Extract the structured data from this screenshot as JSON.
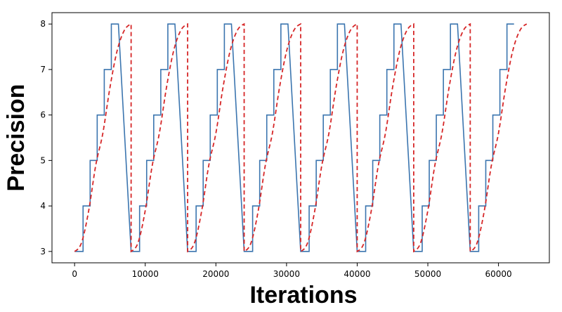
{
  "chart_data": {
    "type": "line",
    "xlabel": "Iterations",
    "ylabel": "Precision",
    "xlim": [
      -3200,
      67200
    ],
    "ylim": [
      2.75,
      8.25
    ],
    "xticks": [
      0,
      10000,
      20000,
      30000,
      40000,
      50000,
      60000
    ],
    "xtick_labels": [
      "0",
      "10000",
      "20000",
      "30000",
      "40000",
      "50000",
      "60000"
    ],
    "yticks": [
      3,
      4,
      5,
      6,
      7,
      8
    ],
    "ytick_labels": [
      "3",
      "4",
      "5",
      "6",
      "7",
      "8"
    ],
    "grid": false,
    "series": [
      {
        "style": "step",
        "color": "#3b75af",
        "period": 8000,
        "cycles": 8,
        "step_edges": [
          0,
          1200,
          2200,
          3200,
          4200,
          5200,
          6200,
          8000
        ],
        "levels": [
          3,
          4,
          5,
          6,
          7,
          8
        ]
      },
      {
        "style": "dashed",
        "color": "#d62728",
        "period": 8000,
        "cycles": 8,
        "curve": "smooth rise from 3 to 8 within each cycle",
        "samples_x": [
          0,
          1000,
          2000,
          3000,
          4000,
          5000,
          6000,
          7000,
          8000
        ],
        "samples_y": [
          3.0,
          3.2,
          3.9,
          4.9,
          5.6,
          6.6,
          7.4,
          7.85,
          8.0
        ]
      }
    ]
  }
}
